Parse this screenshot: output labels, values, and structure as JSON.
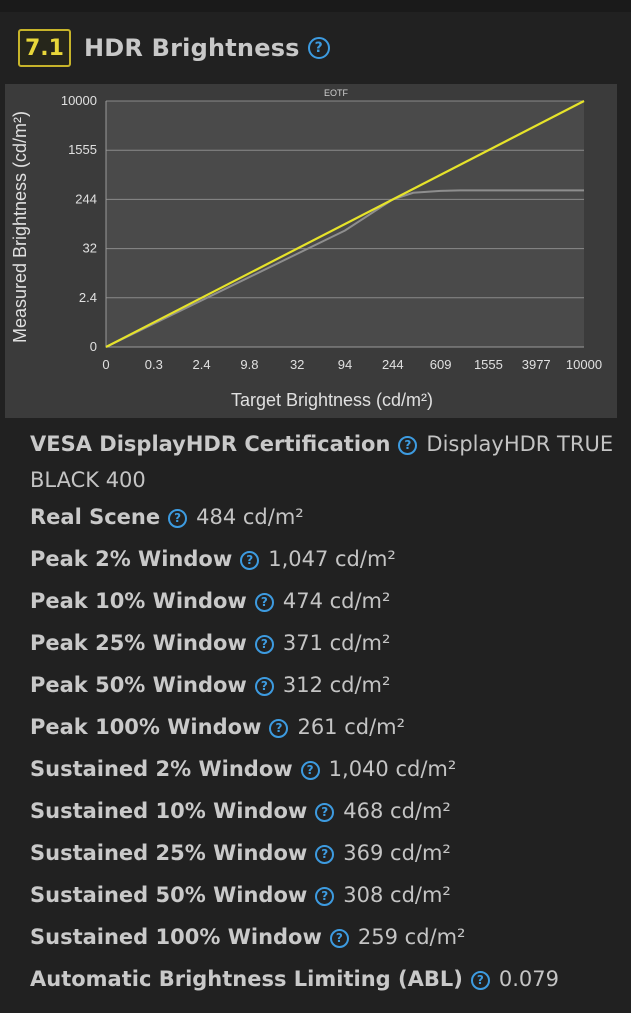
{
  "section": {
    "score": "7.1",
    "title": "HDR Brightness",
    "help_icon": "question-circle-icon"
  },
  "chart_data": {
    "type": "line",
    "title": "EOTF",
    "xlabel": "Target Brightness (cd/m²)",
    "ylabel": "Measured Brightness (cd/m²)",
    "x_ticks": [
      "0",
      "0.3",
      "2.4",
      "9.8",
      "32",
      "94",
      "244",
      "609",
      "1555",
      "3977",
      "10000"
    ],
    "y_ticks": [
      "0",
      "2.4",
      "32",
      "244",
      "1555",
      "10000"
    ],
    "grid": true,
    "series": [
      {
        "color": "#e6e32a",
        "x": [
          0,
          10000
        ],
        "y": [
          0,
          10000
        ]
      },
      {
        "color": "#8e8e8e",
        "x": [
          0,
          94,
          244,
          400,
          609,
          1000,
          1555,
          3977,
          10000
        ],
        "y": [
          0,
          110,
          244,
          420,
          470,
          484,
          484,
          484,
          484
        ]
      }
    ]
  },
  "specs": [
    {
      "label": "VESA DisplayHDR Certification",
      "value": "DisplayHDR TRUE BLACK 400"
    },
    {
      "label": "Real Scene",
      "value": "484 cd/m²"
    },
    {
      "label": "Peak 2% Window",
      "value": "1,047 cd/m²"
    },
    {
      "label": "Peak 10% Window",
      "value": "474 cd/m²"
    },
    {
      "label": "Peak 25% Window",
      "value": "371 cd/m²"
    },
    {
      "label": "Peak 50% Window",
      "value": "312 cd/m²"
    },
    {
      "label": "Peak 100% Window",
      "value": "261 cd/m²"
    },
    {
      "label": "Sustained 2% Window",
      "value": "1,040 cd/m²"
    },
    {
      "label": "Sustained 10% Window",
      "value": "468 cd/m²"
    },
    {
      "label": "Sustained 25% Window",
      "value": "369 cd/m²"
    },
    {
      "label": "Sustained 50% Window",
      "value": "308 cd/m²"
    },
    {
      "label": "Sustained 100% Window",
      "value": "259 cd/m²"
    },
    {
      "label": "Automatic Brightness Limiting (ABL)",
      "value": "0.079"
    }
  ]
}
